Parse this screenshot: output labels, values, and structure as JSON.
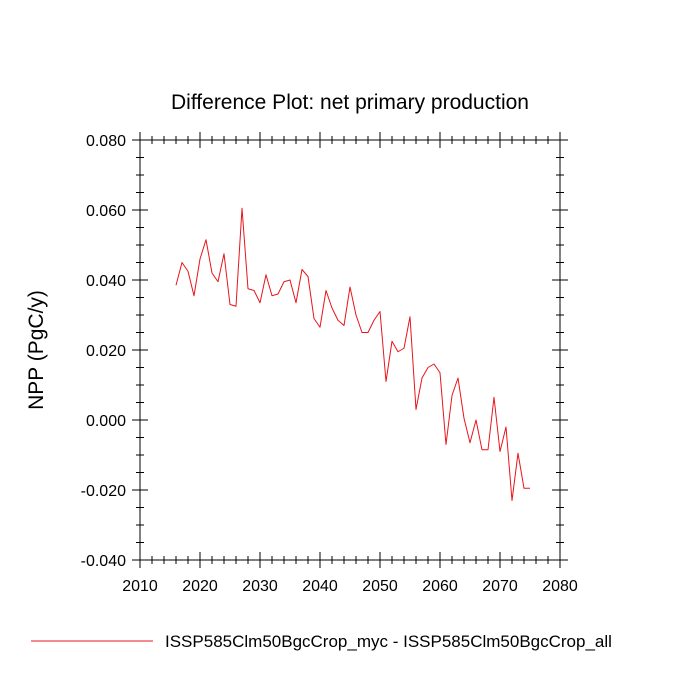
{
  "chart_data": {
    "type": "line",
    "title": "Difference Plot: net primary production",
    "xlabel": "",
    "ylabel": "NPP  (PgC/y)",
    "xlim": [
      2010,
      2080
    ],
    "ylim": [
      -0.04,
      0.08
    ],
    "x_ticks": [
      2010,
      2020,
      2030,
      2040,
      2050,
      2060,
      2070,
      2080
    ],
    "x_tick_labels": [
      "2010",
      "2020",
      "2030",
      "2040",
      "2050",
      "2060",
      "2070",
      "2080"
    ],
    "y_ticks": [
      -0.04,
      -0.02,
      0.0,
      0.02,
      0.04,
      0.06,
      0.08
    ],
    "y_tick_labels": [
      "-0.040",
      "-0.020",
      "0.000",
      "0.020",
      "0.040",
      "0.060",
      "0.080"
    ],
    "grid": false,
    "legend_position": "bottom",
    "series": [
      {
        "name": "ISSP585Clm50BgcCrop_myc - ISSP585Clm50BgcCrop_all",
        "color": "#e8151b",
        "x": [
          2016,
          2017,
          2018,
          2019,
          2020,
          2021,
          2022,
          2023,
          2024,
          2025,
          2026,
          2027,
          2028,
          2029,
          2030,
          2031,
          2032,
          2033,
          2034,
          2035,
          2036,
          2037,
          2038,
          2039,
          2040,
          2041,
          2042,
          2043,
          2044,
          2045,
          2046,
          2047,
          2048,
          2049,
          2050,
          2051,
          2052,
          2053,
          2054,
          2055,
          2056,
          2057,
          2058,
          2059,
          2060,
          2061,
          2062,
          2063,
          2064,
          2065,
          2066,
          2067,
          2068,
          2069,
          2070,
          2071,
          2072,
          2073,
          2074,
          2075
        ],
        "values": [
          0.0385,
          0.045,
          0.0425,
          0.0355,
          0.046,
          0.0515,
          0.042,
          0.0395,
          0.0475,
          0.033,
          0.0325,
          0.0605,
          0.0375,
          0.037,
          0.0335,
          0.0415,
          0.0355,
          0.036,
          0.0395,
          0.04,
          0.0335,
          0.043,
          0.041,
          0.029,
          0.0265,
          0.037,
          0.032,
          0.0285,
          0.027,
          0.038,
          0.03,
          0.025,
          0.025,
          0.0285,
          0.031,
          0.011,
          0.0225,
          0.0195,
          0.0205,
          0.0295,
          0.003,
          0.012,
          0.015,
          0.016,
          0.0135,
          -0.007,
          0.007,
          0.012,
          0.0005,
          -0.0065,
          0.0,
          -0.0085,
          -0.0085,
          0.0065,
          -0.009,
          -0.002,
          -0.023,
          -0.0095,
          -0.0195,
          -0.0195
        ]
      }
    ]
  }
}
